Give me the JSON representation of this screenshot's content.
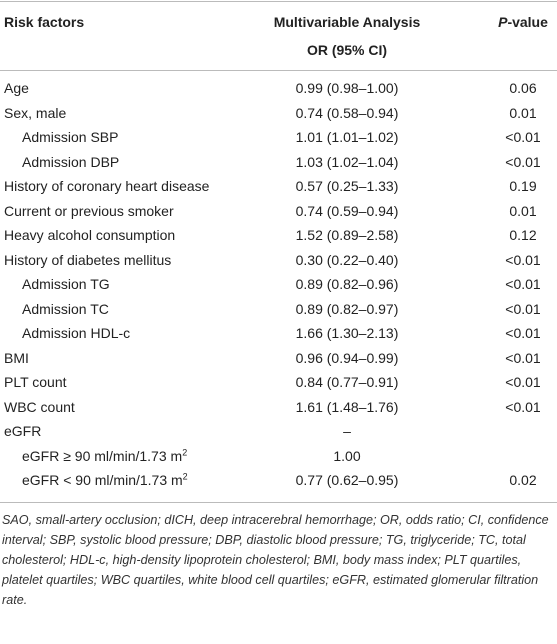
{
  "header": {
    "col1": "Risk factors",
    "col2": [
      "Multivariable Analysis",
      "OR (95% CI)"
    ],
    "col3": {
      "italic": "P",
      "rest": "-value"
    }
  },
  "table": {
    "rows": [
      {
        "label": "Age",
        "or": "0.99 (0.98–1.00)",
        "p": "0.06"
      },
      {
        "label": "Sex, male",
        "or": "0.74 (0.58–0.94)",
        "p": "0.01"
      },
      {
        "label": "Admission SBP",
        "indent": true,
        "or": "1.01 (1.01–1.02)",
        "p": "<0.01"
      },
      {
        "label": "Admission DBP",
        "indent": true,
        "or": "1.03 (1.02–1.04)",
        "p": "<0.01"
      },
      {
        "label": "History of coronary heart disease",
        "or": "0.57 (0.25–1.33)",
        "p": "0.19"
      },
      {
        "label": "Current or previous smoker",
        "or": "0.74 (0.59–0.94)",
        "p": "0.01"
      },
      {
        "label": "Heavy alcohol consumption",
        "or": "1.52 (0.89–2.58)",
        "p": "0.12"
      },
      {
        "label": "History of diabetes mellitus",
        "or": "0.30 (0.22–0.40)",
        "p": "<0.01"
      },
      {
        "label": "Admission TG",
        "indent": true,
        "or": "0.89 (0.82–0.96)",
        "p": "<0.01"
      },
      {
        "label": "Admission TC",
        "indent": true,
        "or": "0.89 (0.82–0.97)",
        "p": "<0.01"
      },
      {
        "label": "Admission HDL-c",
        "indent": true,
        "or": "1.66 (1.30–2.13)",
        "p": "<0.01"
      },
      {
        "label": "BMI",
        "or": "0.96 (0.94–0.99)",
        "p": "<0.01"
      },
      {
        "label": "PLT count",
        "or": "0.84 (0.77–0.91)",
        "p": "<0.01"
      },
      {
        "label": "WBC count",
        "or": "1.61 (1.48–1.76)",
        "p": "<0.01"
      },
      {
        "label": "eGFR",
        "or": "–"
      },
      {
        "label": "eGFR ≥ 90 ml/min/1.73 m",
        "label_sup": "2",
        "indent": true,
        "or": "1.00"
      },
      {
        "label": "eGFR < 90 ml/min/1.73 m",
        "label_sup": "2",
        "indent": true,
        "or": "0.77 (0.62–0.95)",
        "p": "0.02"
      }
    ]
  },
  "footnote": "SAO, small-artery occlusion; dICH, deep intracerebral hemorrhage; OR, odds ratio; CI, confidence interval; SBP, systolic blood pressure; DBP, diastolic blood pressure; TG, triglyceride; TC, total cholesterol; HDL-c, high-density lipoprotein cholesterol; BMI, body mass index; PLT quartiles, platelet quartiles; WBC quartiles, white blood cell quartiles; eGFR, estimated glomerular filtration rate."
}
